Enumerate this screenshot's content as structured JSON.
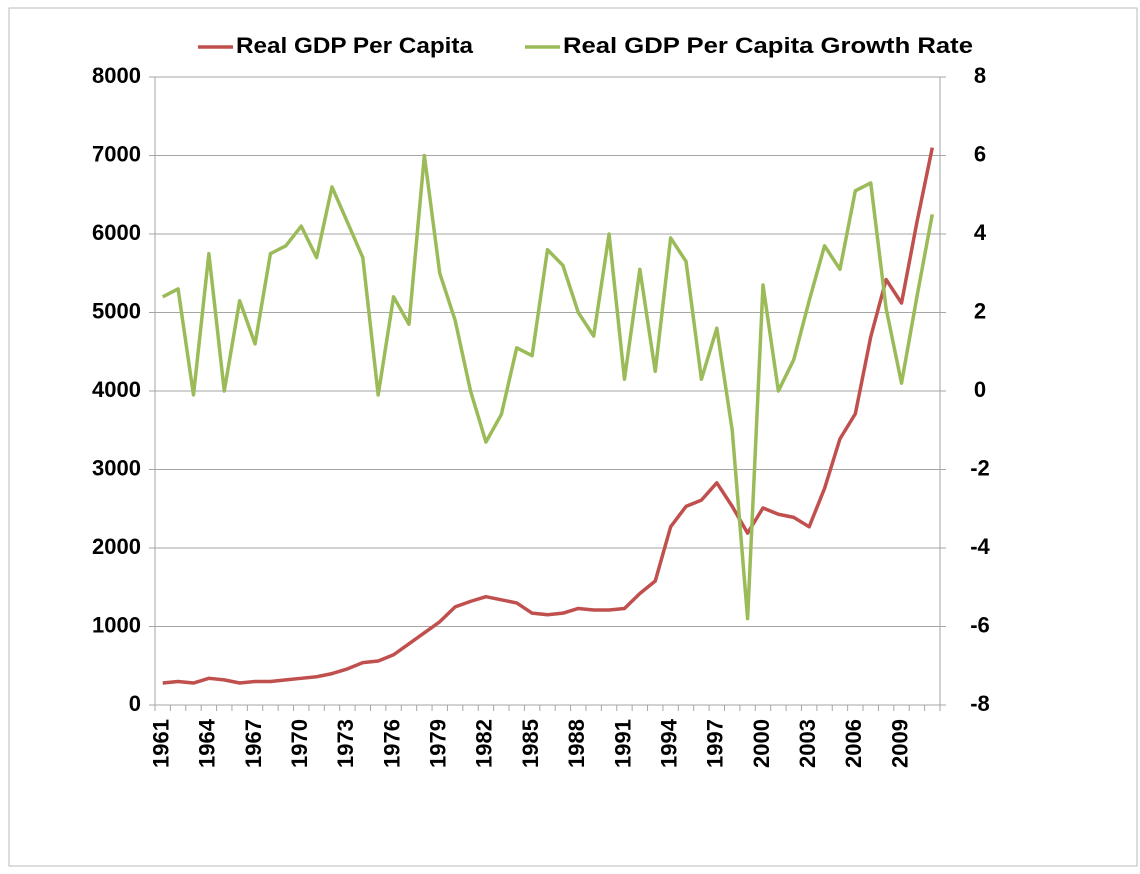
{
  "chart_data": {
    "type": "line",
    "categories": [
      "1961",
      null,
      null,
      "1964",
      null,
      null,
      "1967",
      null,
      null,
      "1970",
      null,
      null,
      "1973",
      null,
      null,
      "1976",
      null,
      null,
      "1979",
      null,
      null,
      "1982",
      null,
      null,
      "1985",
      null,
      null,
      "1988",
      null,
      null,
      "1991",
      null,
      null,
      "1994",
      null,
      null,
      "1997",
      null,
      null,
      "2000",
      null,
      null,
      "2003",
      null,
      null,
      "2006",
      null,
      null,
      "2009",
      null,
      null
    ],
    "series": [
      {
        "name": "Real GDP Per Capita",
        "color": "#c0504d",
        "values": [
          280,
          300,
          280,
          340,
          320,
          280,
          300,
          300,
          320,
          340,
          360,
          400,
          460,
          540,
          560,
          640,
          780,
          920,
          1060,
          1250,
          1320,
          1380,
          1340,
          1300,
          1170,
          1150,
          1170,
          1230,
          1210,
          1210,
          1230,
          1420,
          1580,
          2270,
          2530,
          2610,
          2830,
          2530,
          2190,
          2510,
          2430,
          2390,
          2270,
          2760,
          3390,
          3710,
          4690,
          5420,
          5120,
          6150,
          7100
        ]
      },
      {
        "name": "Real GDP Per Capita Growth Rate",
        "color": "#9bbb59",
        "axis": "y2",
        "values": [
          2.4,
          2.6,
          -0.1,
          3.5,
          0.0,
          2.3,
          1.2,
          3.5,
          3.7,
          4.2,
          3.4,
          5.2,
          4.3,
          3.4,
          -0.1,
          2.4,
          1.7,
          6.0,
          3.0,
          1.8,
          0.0,
          -1.3,
          -0.6,
          1.1,
          0.9,
          3.6,
          3.2,
          2.0,
          1.4,
          4.0,
          0.3,
          3.1,
          0.5,
          3.9,
          3.3,
          0.3,
          1.6,
          -1.0,
          -5.8,
          2.7,
          0.0,
          0.8,
          2.3,
          3.7,
          3.1,
          5.1,
          5.3,
          2.1,
          0.2,
          2.4,
          4.5
        ]
      }
    ],
    "ylim": [
      0,
      8000
    ],
    "yticks": [
      0,
      1000,
      2000,
      3000,
      4000,
      5000,
      6000,
      7000,
      8000
    ],
    "y2lim": [
      -8,
      8
    ],
    "y2ticks": [
      -8,
      -6,
      -4,
      -2,
      0,
      2,
      4,
      6,
      8
    ],
    "grid": true,
    "legend": "top"
  }
}
